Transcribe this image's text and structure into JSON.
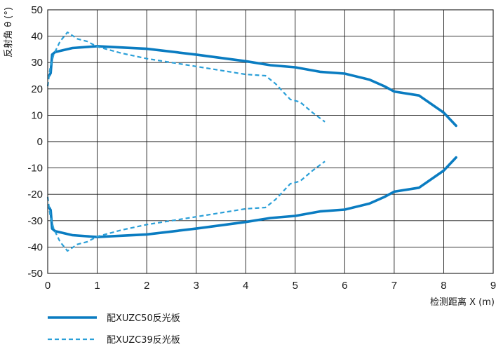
{
  "chart_data": {
    "type": "line",
    "title": "",
    "xlabel": "检测距离 X (m)",
    "ylabel": "反射角 θ (°)",
    "xlim": [
      0,
      9
    ],
    "ylim": [
      -50,
      50
    ],
    "xticks": [
      0,
      1,
      2,
      3,
      4,
      5,
      6,
      7,
      8,
      9
    ],
    "yticks": [
      50,
      40,
      30,
      20,
      10,
      0,
      -10,
      -20,
      -30,
      -40,
      -50
    ],
    "grid": true,
    "legend_position": "bottom-left",
    "series": [
      {
        "name": "配XUZC50反光板",
        "color": "#0a7cc1",
        "style": "solid",
        "upper": [
          [
            0.03,
            25
          ],
          [
            0.06,
            26
          ],
          [
            0.09,
            33
          ],
          [
            0.15,
            34
          ],
          [
            0.5,
            35.5
          ],
          [
            1.0,
            36.2
          ],
          [
            2.0,
            35.2
          ],
          [
            3.0,
            33
          ],
          [
            4.0,
            30.5
          ],
          [
            4.5,
            29
          ],
          [
            5.0,
            28.2
          ],
          [
            5.5,
            26.5
          ],
          [
            6.0,
            25.8
          ],
          [
            6.5,
            23.5
          ],
          [
            6.8,
            21
          ],
          [
            7.0,
            19
          ],
          [
            7.5,
            17.5
          ],
          [
            8.0,
            11
          ],
          [
            8.25,
            6
          ]
        ],
        "lower": [
          [
            0.03,
            -25
          ],
          [
            0.06,
            -26
          ],
          [
            0.09,
            -33
          ],
          [
            0.15,
            -34
          ],
          [
            0.5,
            -35.5
          ],
          [
            1.0,
            -36.2
          ],
          [
            2.0,
            -35.2
          ],
          [
            3.0,
            -33
          ],
          [
            4.0,
            -30.5
          ],
          [
            4.5,
            -29
          ],
          [
            5.0,
            -28.2
          ],
          [
            5.5,
            -26.5
          ],
          [
            6.0,
            -25.8
          ],
          [
            6.5,
            -23.5
          ],
          [
            6.8,
            -21
          ],
          [
            7.0,
            -19
          ],
          [
            7.5,
            -17.5
          ],
          [
            8.0,
            -11
          ],
          [
            8.25,
            -6
          ]
        ]
      },
      {
        "name": "配XUZC39反光板",
        "color": "#2a9fd8",
        "style": "dashed",
        "upper": [
          [
            0.0,
            21
          ],
          [
            0.05,
            28
          ],
          [
            0.12,
            33
          ],
          [
            0.25,
            38
          ],
          [
            0.4,
            41.5
          ],
          [
            0.6,
            39
          ],
          [
            0.8,
            38
          ],
          [
            1.0,
            36
          ],
          [
            1.5,
            33.5
          ],
          [
            2.0,
            31.5
          ],
          [
            3.0,
            28.5
          ],
          [
            4.0,
            25.5
          ],
          [
            4.4,
            25
          ],
          [
            4.6,
            22
          ],
          [
            4.9,
            16
          ],
          [
            5.1,
            15
          ],
          [
            5.35,
            11
          ],
          [
            5.6,
            7.5
          ]
        ],
        "lower": [
          [
            0.0,
            -21
          ],
          [
            0.05,
            -28
          ],
          [
            0.12,
            -33
          ],
          [
            0.25,
            -38
          ],
          [
            0.4,
            -41.5
          ],
          [
            0.6,
            -39
          ],
          [
            0.8,
            -38
          ],
          [
            1.0,
            -36
          ],
          [
            1.5,
            -33.5
          ],
          [
            2.0,
            -31.5
          ],
          [
            3.0,
            -28.5
          ],
          [
            4.0,
            -25.5
          ],
          [
            4.4,
            -25
          ],
          [
            4.6,
            -22
          ],
          [
            4.9,
            -16
          ],
          [
            5.1,
            -15
          ],
          [
            5.35,
            -11
          ],
          [
            5.6,
            -7.5
          ]
        ]
      }
    ]
  }
}
